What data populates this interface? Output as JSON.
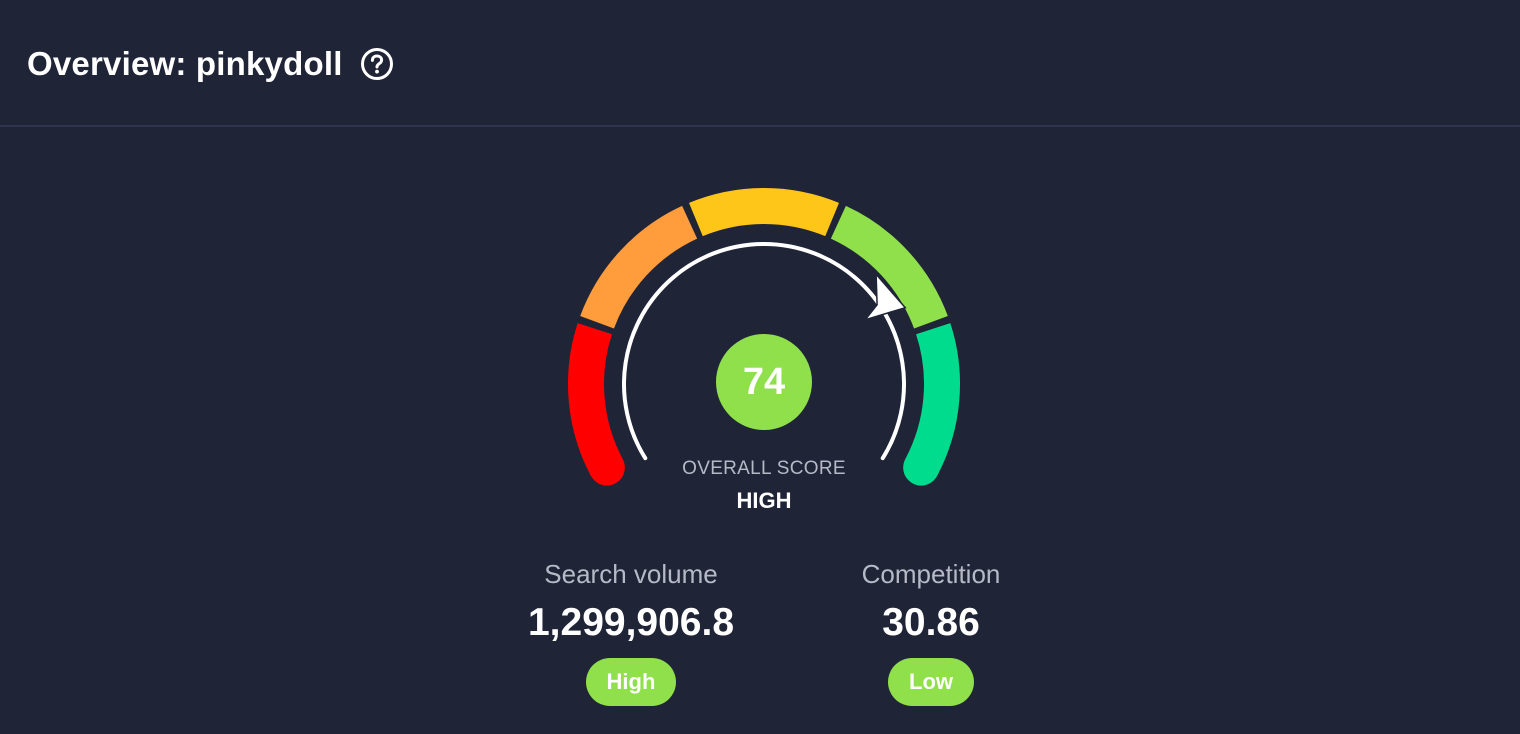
{
  "header": {
    "title": "Overview: pinkydoll",
    "help_icon": "question-circle-icon"
  },
  "gauge": {
    "score": "74",
    "score_value": 74,
    "score_max": 100,
    "label": "OVERALL SCORE",
    "level": "HIGH",
    "segment_colors": [
      "#ff0000",
      "#ff9d3d",
      "#ffc61a",
      "#8fe04a",
      "#00dc8d"
    ],
    "pointer_icon": "arrow-pointer-icon"
  },
  "metrics": {
    "search_volume": {
      "label": "Search volume",
      "value": "1,299,906.8",
      "badge": "High",
      "badge_color": "#8fe04a"
    },
    "competition": {
      "label": "Competition",
      "value": "30.86",
      "badge": "Low",
      "badge_color": "#8fe04a"
    }
  }
}
